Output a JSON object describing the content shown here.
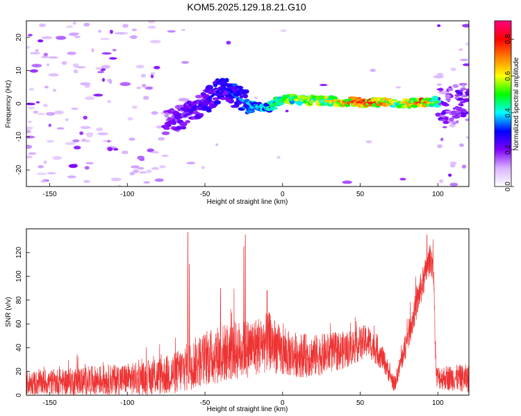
{
  "title": "KOM5.2025.129.18.21.G10",
  "chart_data": [
    {
      "type": "heatmap",
      "xlabel": "Height of straight line (km)",
      "ylabel": "Frequency (Hz)",
      "xlim": [
        -165,
        120
      ],
      "ylim": [
        -25,
        25
      ],
      "xticks": [
        -150,
        -100,
        -50,
        0,
        50,
        100
      ],
      "yticks": [
        -20,
        -10,
        0,
        10,
        20
      ],
      "grid": false,
      "colorbar": {
        "label": "Normalized spectral amplitude",
        "range": [
          0,
          0.9
        ],
        "ticks": [
          0.0,
          0.2,
          0.4,
          0.6,
          0.8
        ],
        "colormap": [
          "#ffffff",
          "#d9b3ff",
          "#8000ff",
          "#0000ff",
          "#00ffff",
          "#00ff00",
          "#ffff00",
          "#ff8000",
          "#ff0000",
          "#ff0080"
        ]
      },
      "ridge": {
        "description_points": [
          {
            "x": -75,
            "y": -6,
            "amp": 0.2
          },
          {
            "x": -60,
            "y": -3,
            "amp": 0.25
          },
          {
            "x": -38,
            "y": 5,
            "amp": 0.3
          },
          {
            "x": -30,
            "y": 2,
            "amp": 0.35
          },
          {
            "x": -20,
            "y": -0.5,
            "amp": 0.4
          },
          {
            "x": -10,
            "y": -1.5,
            "amp": 0.45
          },
          {
            "x": 0,
            "y": 1.5,
            "amp": 0.55
          },
          {
            "x": 10,
            "y": 1,
            "amp": 0.6
          },
          {
            "x": 30,
            "y": 0.8,
            "amp": 0.65
          },
          {
            "x": 55,
            "y": 0.3,
            "amp": 0.85
          },
          {
            "x": 75,
            "y": 0.3,
            "amp": 0.6
          },
          {
            "x": 90,
            "y": 0.3,
            "amp": 0.8
          },
          {
            "x": 100,
            "y": 0.5,
            "amp": 0.5
          }
        ]
      }
    },
    {
      "type": "line",
      "xlabel": "Height of straight line (km)",
      "ylabel": "SNR (v/v)",
      "xlim": [
        -165,
        120
      ],
      "ylim": [
        0,
        140
      ],
      "xticks": [
        -150,
        -100,
        -50,
        0,
        50,
        100
      ],
      "yticks": [
        0,
        20,
        40,
        60,
        80,
        100,
        120
      ],
      "grid": false,
      "series_color": "#ee3333",
      "envelope": [
        {
          "x": -165,
          "mean": 10,
          "amp": 10
        },
        {
          "x": -130,
          "mean": 12,
          "amp": 12
        },
        {
          "x": -90,
          "mean": 14,
          "amp": 14
        },
        {
          "x": -70,
          "mean": 18,
          "amp": 18
        },
        {
          "x": -55,
          "mean": 28,
          "amp": 22
        },
        {
          "x": -40,
          "mean": 35,
          "amp": 25
        },
        {
          "x": -20,
          "mean": 40,
          "amp": 25
        },
        {
          "x": -8,
          "mean": 45,
          "amp": 25
        },
        {
          "x": 0,
          "mean": 35,
          "amp": 20
        },
        {
          "x": 20,
          "mean": 33,
          "amp": 18
        },
        {
          "x": 40,
          "mean": 38,
          "amp": 16
        },
        {
          "x": 55,
          "mean": 46,
          "amp": 14
        },
        {
          "x": 65,
          "mean": 30,
          "amp": 10
        },
        {
          "x": 72,
          "mean": 8,
          "amp": 6
        },
        {
          "x": 80,
          "mean": 45,
          "amp": 12
        },
        {
          "x": 88,
          "mean": 85,
          "amp": 14
        },
        {
          "x": 95,
          "mean": 115,
          "amp": 12
        },
        {
          "x": 97,
          "mean": 110,
          "amp": 15
        },
        {
          "x": 99,
          "mean": 15,
          "amp": 10
        },
        {
          "x": 120,
          "mean": 14,
          "amp": 12
        }
      ],
      "spikes": [
        {
          "x": -61,
          "y": 137
        },
        {
          "x": -60,
          "y": 110
        },
        {
          "x": -40,
          "y": 90
        },
        {
          "x": -25,
          "y": 125
        },
        {
          "x": -24,
          "y": 135
        },
        {
          "x": -10,
          "y": 88
        },
        {
          "x": 93,
          "y": 135
        }
      ]
    }
  ]
}
